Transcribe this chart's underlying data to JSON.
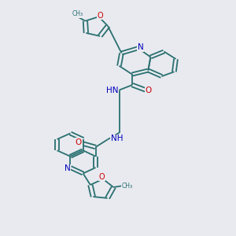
{
  "bg_color": "#e8eaf0",
  "bond_color": "#2a7070",
  "N_color": "#0000bb",
  "O_color": "#cc0000",
  "bond_width": 1.3,
  "figsize": [
    3.0,
    3.0
  ],
  "dpi": 100,
  "xlim": [
    0,
    10
  ],
  "ylim": [
    0,
    12
  ]
}
